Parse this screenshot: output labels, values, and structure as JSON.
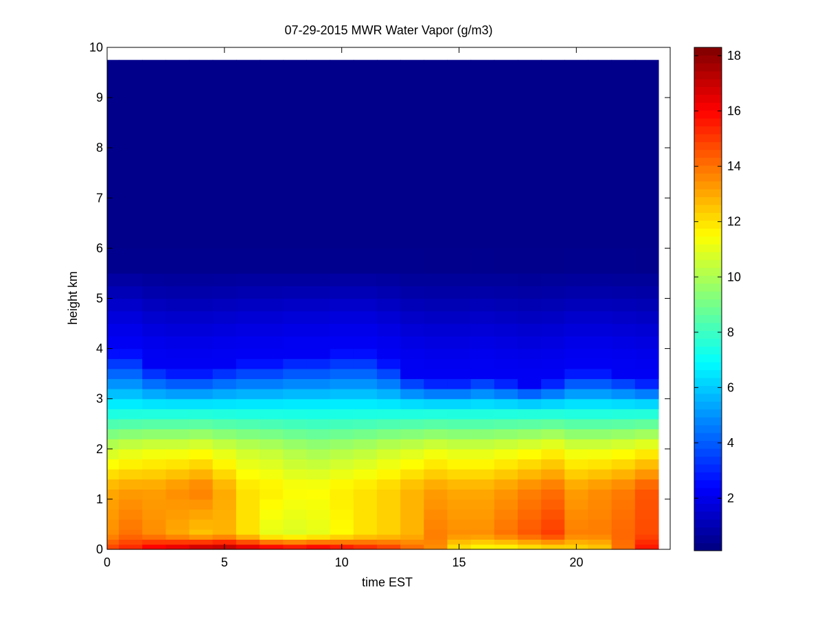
{
  "chart_data": {
    "type": "heatmap",
    "title": "07-29-2015 MWR Water Vapor (g/m3)",
    "xlabel": "time EST",
    "ylabel": "height km",
    "xlim": [
      0,
      24
    ],
    "ylim": [
      0,
      10
    ],
    "xticks": [
      0,
      5,
      10,
      15,
      20
    ],
    "yticks": [
      0,
      1,
      2,
      3,
      4,
      5,
      6,
      7,
      8,
      9,
      10
    ],
    "x_range": [
      0,
      23.5
    ],
    "y_top": 9.75,
    "colormap": "jet",
    "colorbar": {
      "min": 0.1,
      "max": 18.3,
      "ticks": [
        2,
        4,
        6,
        8,
        10,
        12,
        14,
        16,
        18
      ]
    },
    "time_hours": [
      0,
      1,
      2,
      3,
      4,
      5,
      6,
      7,
      8,
      9,
      10,
      11,
      12,
      13,
      14,
      15,
      16,
      17,
      18,
      19,
      20,
      21,
      22,
      23
    ],
    "profile_heights_km": [
      0,
      0.1,
      0.2,
      0.3,
      0.4,
      0.6,
      0.8,
      1.0,
      1.2,
      1.4,
      1.6,
      1.8,
      2.0,
      2.2,
      2.4,
      2.6,
      2.8,
      3.0,
      3.2,
      3.4,
      3.6,
      3.8,
      4.0,
      4.25,
      4.5,
      4.75,
      5.0,
      5.25,
      5.5,
      6.0,
      7.0,
      8.0,
      9.0,
      9.75
    ],
    "surface_values": [
      15.0,
      15.5,
      16.5,
      17.0,
      17.6,
      17.8,
      17.3,
      16.8,
      16.5,
      16.8,
      16.3,
      15.8,
      15.3,
      14.3,
      13.5,
      11.8,
      11.3,
      11.3,
      11.6,
      11.8,
      12.0,
      12.3,
      14.0,
      15.8
    ],
    "low_values": [
      13.5,
      14.0,
      13.5,
      13.0,
      12.5,
      12.8,
      12.0,
      11.0,
      10.8,
      11.0,
      11.5,
      12.0,
      12.3,
      12.8,
      13.8,
      13.5,
      13.5,
      14.0,
      14.5,
      15.0,
      13.8,
      13.8,
      14.2,
      14.7
    ],
    "mid_values": [
      13.0,
      13.2,
      13.2,
      13.5,
      13.8,
      13.0,
      12.0,
      11.8,
      11.5,
      11.5,
      11.8,
      12.0,
      12.3,
      12.8,
      13.2,
      13.0,
      13.0,
      13.3,
      13.7,
      14.0,
      13.2,
      13.5,
      13.8,
      14.5
    ],
    "upper_values": [
      10.5,
      10.8,
      11.0,
      11.0,
      11.2,
      10.8,
      10.5,
      10.3,
      10.0,
      9.8,
      10.0,
      10.2,
      10.5,
      10.7,
      11.0,
      10.8,
      10.8,
      11.0,
      11.2,
      11.5,
      11.0,
      11.0,
      11.2,
      11.5
    ],
    "moist_top_km": [
      4.0,
      4.0,
      3.7,
      3.6,
      3.6,
      3.7,
      3.8,
      3.8,
      3.9,
      3.9,
      4.0,
      4.0,
      3.8,
      3.5,
      3.4,
      3.4,
      3.5,
      3.4,
      3.3,
      3.4,
      3.6,
      3.6,
      3.5,
      3.4
    ]
  }
}
